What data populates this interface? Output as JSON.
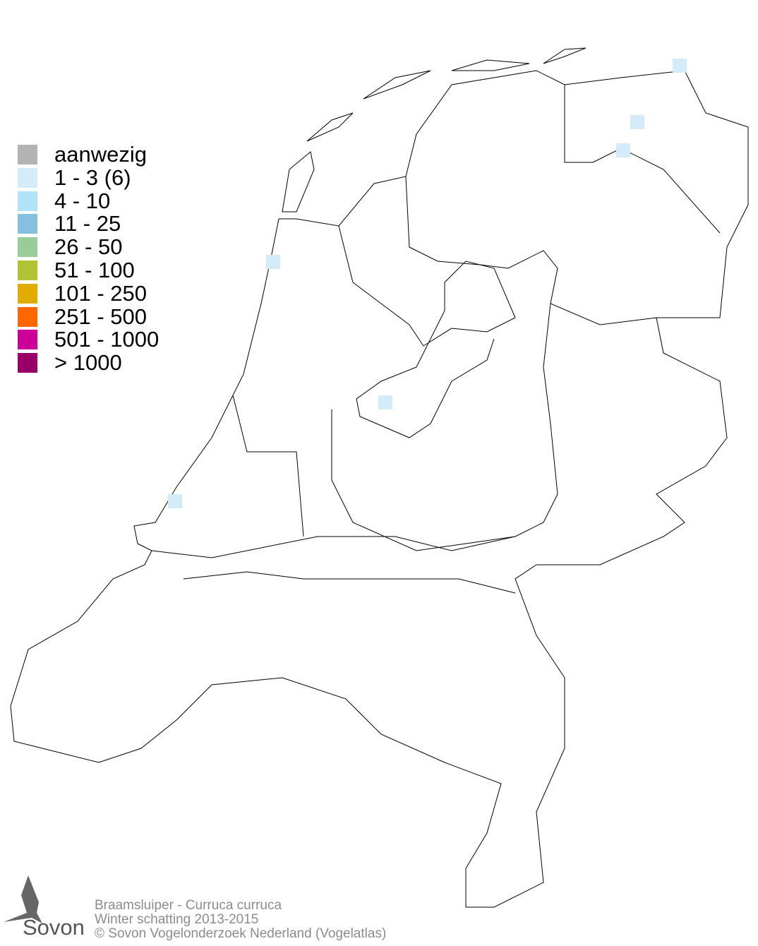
{
  "legend": {
    "items": [
      {
        "label": "aanwezig",
        "color": "#b3b3b3"
      },
      {
        "label": "1 - 3 (6)",
        "color": "#d4ecfa"
      },
      {
        "label": "4 - 10",
        "color": "#b0e2fa"
      },
      {
        "label": "11 - 25",
        "color": "#86c0de"
      },
      {
        "label": "26 - 50",
        "color": "#99cc99"
      },
      {
        "label": "51 - 100",
        "color": "#b0c236"
      },
      {
        "label": "101 - 250",
        "color": "#e0ac00"
      },
      {
        "label": "251 - 500",
        "color": "#ff6600"
      },
      {
        "label": "501 - 1000",
        "color": "#cc0099"
      },
      {
        "label": "> 1000",
        "color": "#990066"
      }
    ]
  },
  "map": {
    "region": "Netherlands",
    "occupied_cell_class": "1 - 3 (6)",
    "occupied_cell_count": 6
  },
  "footer": {
    "species": "Braamsluiper - Curruca curruca",
    "season": "Winter schatting 2013-2015",
    "copyright": "© Sovon Vogelonderzoek Nederland (Vogelatlas)"
  },
  "logo": {
    "text": "Sovon"
  }
}
